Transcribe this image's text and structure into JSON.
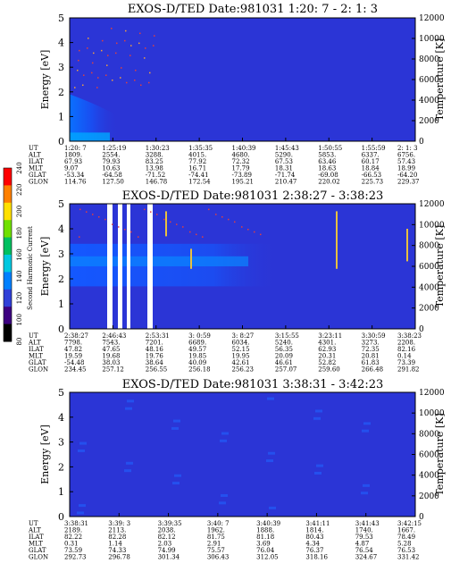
{
  "colorbar": {
    "label": "Second Harmonic Current",
    "ticks": [
      "80",
      "100",
      "120",
      "140",
      "160",
      "180",
      "200",
      "220",
      "240"
    ],
    "range": [
      80,
      240
    ],
    "colors": [
      "#000000",
      "#3c0080",
      "#3040d8",
      "#0080ff",
      "#00c8e0",
      "#00c060",
      "#70e000",
      "#ffe000",
      "#ff8000",
      "#ff0000"
    ]
  },
  "chart_data": [
    {
      "type": "heatmap",
      "title": "EXOS-D/TED   Date:981031  1:20: 7 - 2: 1: 3",
      "ylabel": "Energy [eV]",
      "y2label": "Temperature [K]",
      "ylim": [
        0,
        5
      ],
      "y2lim": [
        0,
        12000
      ],
      "yticks": [
        "0",
        "1",
        "2",
        "3",
        "4",
        "5"
      ],
      "y2ticks": [
        "0",
        "2000",
        "4000",
        "6000",
        "8000",
        "10000",
        "12000"
      ],
      "row_labels": [
        "UT",
        "ALT",
        "ILAT",
        "MLT",
        "GLAT",
        "GLON"
      ],
      "columns": [
        [
          "1:20: 7",
          "1809.",
          "67.93",
          "9.07",
          "-53.34",
          "114.76"
        ],
        [
          "1:25:19",
          "2554.",
          "79.93",
          "10.63",
          "-64.58",
          "127.50"
        ],
        [
          "1:30:23",
          "3288.",
          "83.25",
          "13.98",
          "-71.52",
          "146.78"
        ],
        [
          "1:35:35",
          "4015.",
          "77.92",
          "16.71",
          "-74.41",
          "172.54"
        ],
        [
          "1:40:39",
          "4680.",
          "72.32",
          "17.79",
          "-73.89",
          "195.21"
        ],
        [
          "1:45:43",
          "5290.",
          "67.53",
          "18.31",
          "-71.74",
          "210.47"
        ],
        [
          "1:50:55",
          "5853.",
          "63.46",
          "18.63",
          "-69.08",
          "220.02"
        ],
        [
          "1:55:59",
          "6337.",
          "60.17",
          "18.84",
          "-66.53",
          "225.73"
        ],
        [
          "2: 1: 3",
          "6756.",
          "57.43",
          "18.99",
          "-64.20",
          "229.37"
        ]
      ]
    },
    {
      "type": "heatmap",
      "title": "EXOS-D/TED   Date:981031  2:38:27 - 3:38:23",
      "ylabel": "Energy [eV]",
      "y2label": "Temperature [K]",
      "ylim": [
        0,
        5
      ],
      "y2lim": [
        0,
        12000
      ],
      "yticks": [
        "0",
        "1",
        "2",
        "3",
        "4",
        "5"
      ],
      "y2ticks": [
        "0",
        "2000",
        "4000",
        "6000",
        "8000",
        "10000",
        "12000"
      ],
      "row_labels": [
        "UT",
        "ALT",
        "ILAT",
        "MLT",
        "GLAT",
        "GLON"
      ],
      "columns": [
        [
          "2:38:27",
          "7798.",
          "47.82",
          "19.59",
          "-54.48",
          "234.45"
        ],
        [
          "2:46:43",
          "7543.",
          "47.65",
          "19.68",
          "38.03",
          "257.12"
        ],
        [
          "2:53:31",
          "7201.",
          "48.16",
          "19.76",
          "38.64",
          "256.55"
        ],
        [
          "3: 0:59",
          "6689.",
          "49.57",
          "19.85",
          "40.09",
          "256.18"
        ],
        [
          "3: 8:27",
          "6034.",
          "52.15",
          "19.95",
          "42.61",
          "256.23"
        ],
        [
          "3:15:55",
          "5240.",
          "56.35",
          "20.09",
          "46.61",
          "257.07"
        ],
        [
          "3:23:11",
          "4301.",
          "62.93",
          "20.31",
          "52.82",
          "259.60"
        ],
        [
          "3:30:59",
          "3273.",
          "72.35",
          "20.81",
          "61.83",
          "266.48"
        ],
        [
          "3:38:23",
          "2208.",
          "82.16",
          "0.14",
          "73.39",
          "291.82"
        ]
      ]
    },
    {
      "type": "heatmap",
      "title": "EXOS-D/TED   Date:981031  3:38:31 - 3:42:23",
      "ylabel": "Energy [eV]",
      "y2label": "Temperature [K]",
      "ylim": [
        0,
        5
      ],
      "y2lim": [
        0,
        12000
      ],
      "yticks": [
        "0",
        "1",
        "2",
        "3",
        "4",
        "5"
      ],
      "y2ticks": [
        "0",
        "2000",
        "4000",
        "6000",
        "8000",
        "10000",
        "12000"
      ],
      "row_labels": [
        "UT",
        "ALT",
        "ILAT",
        "MLT",
        "GLAT",
        "GLON"
      ],
      "columns": [
        [
          "3:38:31",
          "2189.",
          "82.22",
          "0.31",
          "73.59",
          "292.73"
        ],
        [
          "3:39: 3",
          "2113.",
          "82.28",
          "1.14",
          "74.33",
          "296.78"
        ],
        [
          "3:39:35",
          "2038.",
          "82.12",
          "2.03",
          "74.99",
          "301.34"
        ],
        [
          "3:40: 7",
          "1962.",
          "81.75",
          "2.91",
          "75.57",
          "306.43"
        ],
        [
          "3:40:39",
          "1888.",
          "81.18",
          "3.69",
          "76.04",
          "312.05"
        ],
        [
          "3:41:11",
          "1814.",
          "80.43",
          "4.34",
          "76.37",
          "318.16"
        ],
        [
          "3:41:43",
          "1740.",
          "79.53",
          "4.87",
          "76.54",
          "324.67"
        ],
        [
          "3:42:15",
          "1667.",
          "78.49",
          "5.28",
          "76.53",
          "331.42"
        ]
      ]
    }
  ]
}
